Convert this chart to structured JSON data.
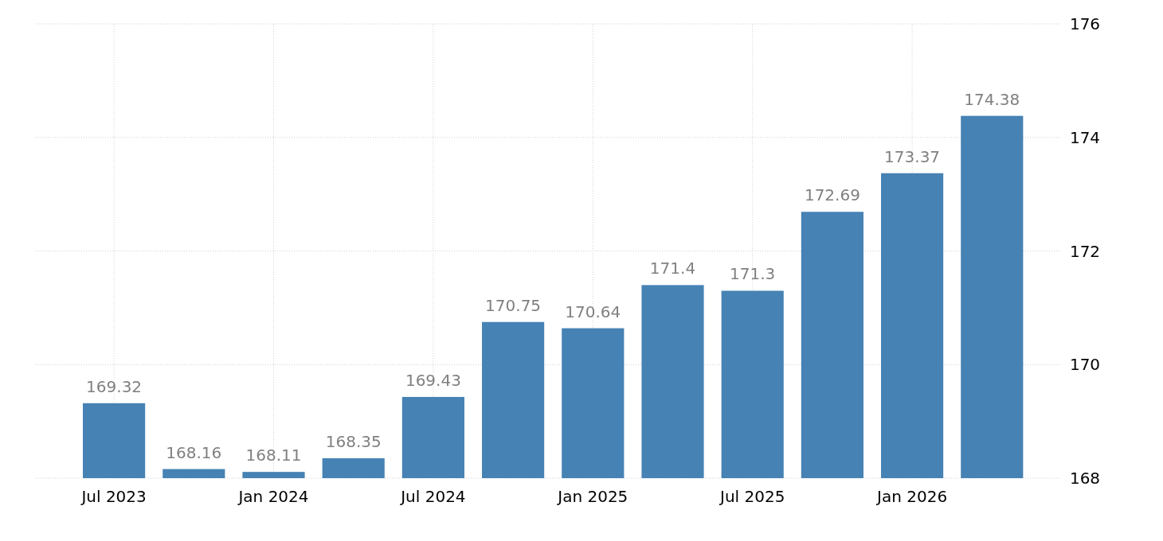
{
  "chart_data": {
    "type": "bar",
    "categories": [
      "Jul 2023",
      null,
      "Jan 2024",
      null,
      "Jul 2024",
      null,
      "Jan 2025",
      null,
      "Jul 2025",
      null,
      "Jan 2026",
      null
    ],
    "values": [
      169.32,
      168.16,
      168.11,
      168.35,
      169.43,
      170.75,
      170.64,
      171.4,
      171.3,
      172.69,
      173.37,
      174.38
    ],
    "color": "#4682b4",
    "ylim": [
      168,
      176
    ],
    "yticks": [
      168,
      170,
      172,
      174,
      176
    ],
    "grid": true,
    "data_labels": true
  }
}
